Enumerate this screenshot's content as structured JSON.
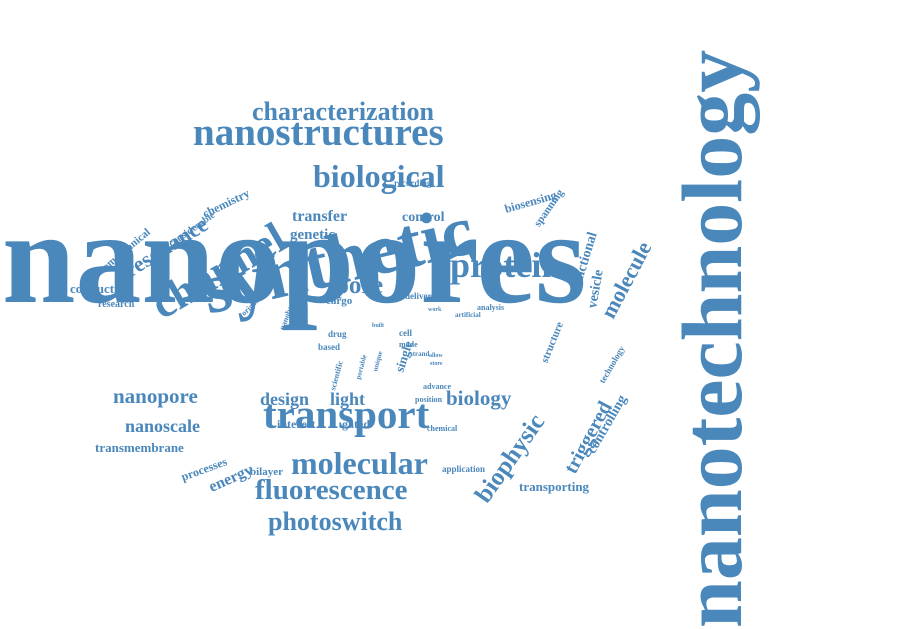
{
  "word_cloud": {
    "text_color": "#4a87bb",
    "background": "#ffffff",
    "words": [
      {
        "id": "nanopores",
        "text": "nanopores"
      },
      {
        "id": "nanotechnology",
        "text": "nanotechnology"
      },
      {
        "id": "synthetic",
        "text": "synthetic"
      },
      {
        "id": "nanostructures",
        "text": "nanostructures"
      },
      {
        "id": "characterization",
        "text": "characterization"
      },
      {
        "id": "biological",
        "text": "biological"
      },
      {
        "id": "channel",
        "text": "channel"
      },
      {
        "id": "protein",
        "text": "protein"
      },
      {
        "id": "transport",
        "text": "transport"
      },
      {
        "id": "molecular",
        "text": "molecular"
      },
      {
        "id": "fluorescence",
        "text": "fluorescence"
      },
      {
        "id": "photoswitch",
        "text": "photoswitch"
      },
      {
        "id": "nanopore",
        "text": "nanopore"
      },
      {
        "id": "biology",
        "text": "biology"
      },
      {
        "id": "pore",
        "text": "pore"
      },
      {
        "id": "resonance",
        "text": "resonance"
      },
      {
        "id": "design",
        "text": "design"
      },
      {
        "id": "light",
        "text": "light"
      },
      {
        "id": "nanoscale",
        "text": "nanoscale"
      },
      {
        "id": "biophysic",
        "text": "biophysic"
      },
      {
        "id": "molecule",
        "text": "molecule"
      },
      {
        "id": "triggered",
        "text": "triggered"
      },
      {
        "id": "transfer",
        "text": "transfer"
      },
      {
        "id": "genetic",
        "text": "genetic"
      },
      {
        "id": "control",
        "text": "control"
      },
      {
        "id": "vesicle",
        "text": "vesicle"
      },
      {
        "id": "functional",
        "text": "functional"
      },
      {
        "id": "controlling",
        "text": "controlling"
      },
      {
        "id": "energy",
        "text": "energy"
      },
      {
        "id": "biosensing",
        "text": "biosensing"
      },
      {
        "id": "conductive",
        "text": "conductive"
      },
      {
        "id": "transmembrane",
        "text": "transmembrane"
      },
      {
        "id": "processes",
        "text": "processes"
      },
      {
        "id": "interest",
        "text": "interest"
      },
      {
        "id": "gated",
        "text": "gated"
      },
      {
        "id": "transporting",
        "text": "transporting"
      },
      {
        "id": "bilayer",
        "text": "bilayer"
      },
      {
        "id": "chemistry",
        "text": "chemistry"
      },
      {
        "id": "considerable",
        "text": "considerable"
      },
      {
        "id": "nanomechanical",
        "text": "nanomechanical"
      },
      {
        "id": "research",
        "text": "research"
      },
      {
        "id": "spanning",
        "text": "spanning"
      },
      {
        "id": "structure",
        "text": "structure"
      },
      {
        "id": "technology",
        "text": "technology"
      },
      {
        "id": "cargo",
        "text": "cargo"
      },
      {
        "id": "delivery",
        "text": "delivery"
      },
      {
        "id": "single",
        "text": "single"
      },
      {
        "id": "application",
        "text": "application"
      },
      {
        "id": "recording",
        "text": "recording"
      },
      {
        "id": "function",
        "text": "function"
      },
      {
        "id": "origami",
        "text": "origami"
      },
      {
        "id": "nanobarrel",
        "text": "nanobarrel"
      },
      {
        "id": "drug",
        "text": "drug"
      },
      {
        "id": "based",
        "text": "based"
      },
      {
        "id": "scientific",
        "text": "scientific"
      },
      {
        "id": "cell",
        "text": "cell"
      },
      {
        "id": "made",
        "text": "made"
      },
      {
        "id": "strand",
        "text": "strand"
      },
      {
        "id": "position",
        "text": "position"
      },
      {
        "id": "advance",
        "text": "advance"
      },
      {
        "id": "chemical",
        "text": "chemical"
      },
      {
        "id": "analysis",
        "text": "analysis"
      },
      {
        "id": "artificial",
        "text": "artificial"
      },
      {
        "id": "portable",
        "text": "portable"
      },
      {
        "id": "unique",
        "text": "unique"
      },
      {
        "id": "built",
        "text": "built"
      },
      {
        "id": "allow",
        "text": "allow"
      },
      {
        "id": "store",
        "text": "store"
      },
      {
        "id": "work",
        "text": "work"
      }
    ]
  }
}
